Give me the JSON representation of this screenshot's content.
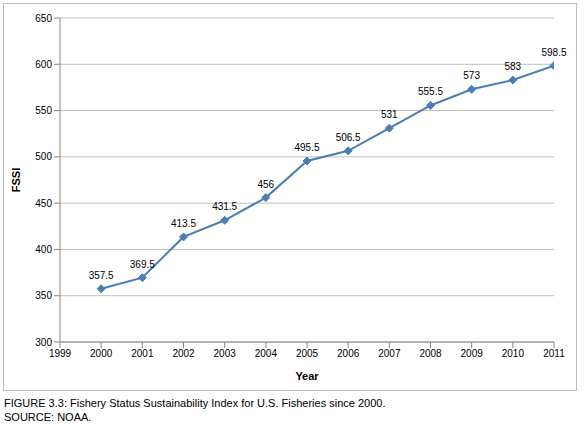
{
  "chart_data": {
    "type": "line",
    "title": "FIGURE 3.3: Fishery Status Sustainability Index for U.S. Fisheries since 2000.",
    "subtitle": "SOURCE: NOAA.",
    "xlabel": "Year",
    "ylabel": "FSSI",
    "x": [
      2000,
      2001,
      2002,
      2003,
      2004,
      2005,
      2006,
      2007,
      2008,
      2009,
      2010,
      2011
    ],
    "values": [
      357.5,
      369.5,
      413.5,
      431.5,
      456,
      495.5,
      506.5,
      531,
      555.5,
      573,
      583,
      598.5
    ],
    "color": "#4a7ebb",
    "marker": "diamond",
    "xlim": [
      1999,
      2011
    ],
    "xticks": [
      1999,
      2000,
      2001,
      2002,
      2003,
      2004,
      2005,
      2006,
      2007,
      2008,
      2009,
      2010,
      2011
    ],
    "ylim": [
      300,
      650
    ],
    "yticks": [
      300,
      350,
      400,
      450,
      500,
      550,
      600,
      650
    ],
    "grid": true,
    "data_labels": true
  }
}
